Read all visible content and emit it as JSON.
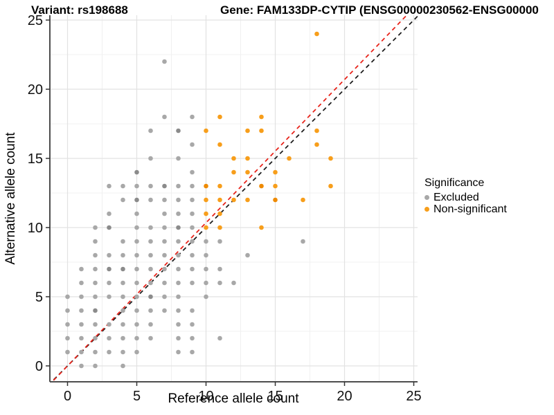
{
  "titles": {
    "variant": "Variant: rs198688",
    "gene": "Gene: FAM133DP-CYTIP (ENSG00000230562-ENSG00000"
  },
  "axes": {
    "x_label": "Reference allele count",
    "y_label": "Alternative allele count",
    "x_ticks": [
      0,
      5,
      10,
      15,
      20,
      25
    ],
    "y_ticks": [
      0,
      5,
      10,
      15,
      20,
      25
    ]
  },
  "legend": {
    "title": "Significance",
    "items": [
      {
        "label": "Excluded",
        "color": "#a8a8a8"
      },
      {
        "label": "Non-significant",
        "color": "#f79e1b"
      }
    ]
  },
  "colors": {
    "gray_point": "#a8a8a8",
    "gray_point_dark": "#8b8b8b",
    "orange_point": "#f79e1b",
    "orange_point_dark": "#ee8a02",
    "grid_major": "#e2e2e2",
    "grid_minor": "#f0f0f0",
    "axis_line": "#4d4d4d",
    "tick_text": "#111111",
    "red_line": "#e8231a",
    "black_line": "#1c1c1c"
  },
  "chart_data": {
    "type": "scatter",
    "title": "Variant: rs198688 — Gene: FAM133DP-CYTIP (ENSG00000230562-ENSG00000...)",
    "xlabel": "Reference allele count",
    "ylabel": "Alternative allele count",
    "xlim": [
      -1.275,
      25.275
    ],
    "ylim": [
      -1.15,
      25.35
    ],
    "grid": "major+minor",
    "legend_position": "right",
    "legend_title": "Significance",
    "series": [
      {
        "name": "Excluded",
        "color": "#a8a8a8",
        "points": [
          [
            7,
            22
          ],
          [
            7,
            18
          ],
          [
            9,
            18
          ],
          [
            6,
            17
          ],
          [
            8,
            17,
            1
          ],
          [
            9,
            16
          ],
          [
            6,
            15
          ],
          [
            8,
            15
          ],
          [
            5,
            14,
            1
          ],
          [
            9,
            14
          ],
          [
            3,
            13
          ],
          [
            4,
            13
          ],
          [
            5,
            13
          ],
          [
            6,
            13
          ],
          [
            7,
            13,
            1
          ],
          [
            8,
            13
          ],
          [
            9,
            13
          ],
          [
            4,
            12
          ],
          [
            5,
            12,
            1
          ],
          [
            6,
            12
          ],
          [
            7,
            12
          ],
          [
            8,
            12
          ],
          [
            9,
            12
          ],
          [
            3,
            11
          ],
          [
            5,
            11
          ],
          [
            7,
            11
          ],
          [
            8,
            11
          ],
          [
            9,
            11
          ],
          [
            2,
            10
          ],
          [
            3,
            10,
            1
          ],
          [
            5,
            10
          ],
          [
            6,
            10
          ],
          [
            7,
            10
          ],
          [
            8,
            10,
            1
          ],
          [
            9,
            10
          ],
          [
            2,
            9
          ],
          [
            4,
            9
          ],
          [
            5,
            9
          ],
          [
            6,
            9
          ],
          [
            7,
            9
          ],
          [
            8,
            9
          ],
          [
            9,
            9
          ],
          [
            10,
            9
          ],
          [
            11,
            9
          ],
          [
            17,
            9
          ],
          [
            2,
            8
          ],
          [
            3,
            8
          ],
          [
            4,
            8
          ],
          [
            5,
            8
          ],
          [
            6,
            8
          ],
          [
            7,
            8
          ],
          [
            8,
            8
          ],
          [
            9,
            8
          ],
          [
            10,
            8
          ],
          [
            13,
            8
          ],
          [
            1,
            7
          ],
          [
            2,
            7
          ],
          [
            3,
            7,
            1
          ],
          [
            4,
            7,
            1
          ],
          [
            5,
            7
          ],
          [
            6,
            7
          ],
          [
            7,
            7
          ],
          [
            8,
            7
          ],
          [
            9,
            7
          ],
          [
            10,
            7
          ],
          [
            11,
            7
          ],
          [
            1,
            6
          ],
          [
            2,
            6
          ],
          [
            3,
            6
          ],
          [
            4,
            6
          ],
          [
            5,
            6
          ],
          [
            6,
            6
          ],
          [
            7,
            6
          ],
          [
            8,
            6
          ],
          [
            9,
            6
          ],
          [
            10,
            6
          ],
          [
            11,
            6
          ],
          [
            12,
            6
          ],
          [
            0,
            5
          ],
          [
            1,
            5
          ],
          [
            2,
            5
          ],
          [
            3,
            5
          ],
          [
            4,
            5
          ],
          [
            5,
            5
          ],
          [
            6,
            5,
            1
          ],
          [
            7,
            5
          ],
          [
            8,
            5
          ],
          [
            10,
            5
          ],
          [
            0,
            4
          ],
          [
            1,
            4
          ],
          [
            2,
            4,
            1
          ],
          [
            4,
            4
          ],
          [
            5,
            4
          ],
          [
            6,
            4
          ],
          [
            7,
            4
          ],
          [
            8,
            4
          ],
          [
            9,
            4
          ],
          [
            0,
            3
          ],
          [
            1,
            3
          ],
          [
            2,
            3
          ],
          [
            3,
            3
          ],
          [
            4,
            3
          ],
          [
            5,
            3
          ],
          [
            6,
            3
          ],
          [
            8,
            3
          ],
          [
            9,
            3
          ],
          [
            0,
            2
          ],
          [
            1,
            2
          ],
          [
            2,
            2
          ],
          [
            3,
            2
          ],
          [
            4,
            2
          ],
          [
            5,
            2
          ],
          [
            6,
            2
          ],
          [
            8,
            2
          ],
          [
            9,
            2
          ],
          [
            11,
            2
          ],
          [
            0,
            1
          ],
          [
            1,
            1
          ],
          [
            2,
            1
          ],
          [
            3,
            1
          ],
          [
            4,
            1
          ],
          [
            5,
            1
          ],
          [
            8,
            1
          ],
          [
            9,
            1
          ],
          [
            1,
            0
          ],
          [
            2,
            0
          ],
          [
            4,
            0
          ]
        ]
      },
      {
        "name": "Non-significant",
        "color": "#f79e1b",
        "points": [
          [
            18,
            24
          ],
          [
            11,
            18
          ],
          [
            14,
            18
          ],
          [
            10,
            17
          ],
          [
            13,
            17
          ],
          [
            14,
            17
          ],
          [
            18,
            17
          ],
          [
            11,
            16
          ],
          [
            18,
            16
          ],
          [
            12,
            15
          ],
          [
            13,
            15
          ],
          [
            16,
            15
          ],
          [
            19,
            15
          ],
          [
            12,
            14
          ],
          [
            13,
            14
          ],
          [
            15,
            14
          ],
          [
            10,
            13,
            1
          ],
          [
            11,
            13
          ],
          [
            14,
            13,
            1
          ],
          [
            15,
            13
          ],
          [
            19,
            13
          ],
          [
            10,
            12
          ],
          [
            11,
            12
          ],
          [
            12,
            12
          ],
          [
            13,
            12
          ],
          [
            15,
            12,
            1
          ],
          [
            17,
            12
          ],
          [
            10,
            11
          ],
          [
            11,
            11
          ],
          [
            10,
            10
          ],
          [
            11,
            10
          ],
          [
            14,
            10
          ]
        ]
      }
    ],
    "reference_lines": [
      {
        "name": "identity-line",
        "slope": 1.0,
        "intercept": 0,
        "color": "#1c1c1c",
        "style": "dashed"
      },
      {
        "name": "fit-line",
        "slope": 1.035,
        "intercept": 0,
        "color": "#e8231a",
        "style": "dashed"
      }
    ]
  }
}
